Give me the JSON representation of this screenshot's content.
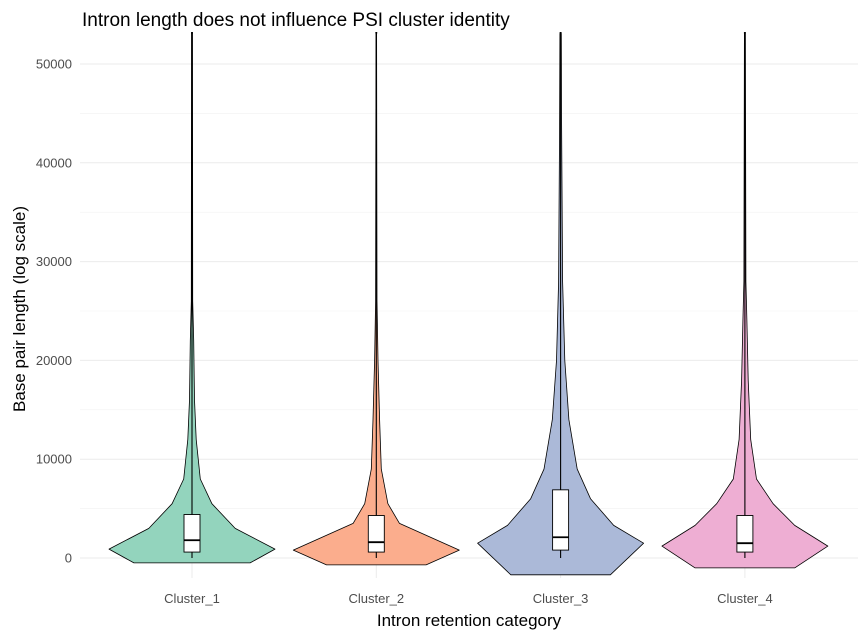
{
  "chart_data": {
    "type": "violin",
    "title": "Intron length does not influence PSI cluster identity",
    "xlabel": "Intron retention category",
    "ylabel": "Base pair length (log scale)",
    "categories": [
      "Cluster_1",
      "Cluster_2",
      "Cluster_3",
      "Cluster_4"
    ],
    "yticks": [
      0,
      10000,
      20000,
      30000,
      40000,
      50000
    ],
    "ytick_labels": [
      "0",
      "10000",
      "20000",
      "30000",
      "40000",
      "50000"
    ],
    "ylim": [
      -1800,
      53000
    ],
    "grid": true,
    "legend": "none",
    "colors": [
      "#93d4bd",
      "#fbad8d",
      "#abb9d8",
      "#eeaed3"
    ],
    "series": [
      {
        "category": "Cluster_1",
        "color": "#93d4bd",
        "boxplot": {
          "lower_whisker": 0,
          "q1": 600,
          "median": 1800,
          "q3": 4400,
          "upper_whisker": 53000
        },
        "density_profile": [
          {
            "y": -500,
            "w": 0.35
          },
          {
            "y": 900,
            "w": 0.5
          },
          {
            "y": 3000,
            "w": 0.26
          },
          {
            "y": 5500,
            "w": 0.12
          },
          {
            "y": 8000,
            "w": 0.05
          },
          {
            "y": 12000,
            "w": 0.025
          },
          {
            "y": 16000,
            "w": 0.015
          },
          {
            "y": 22000,
            "w": 0.01
          },
          {
            "y": 26000,
            "w": 0.004
          },
          {
            "y": 53000,
            "w": 0.003
          }
        ]
      },
      {
        "category": "Cluster_2",
        "color": "#fbad8d",
        "boxplot": {
          "lower_whisker": 0,
          "q1": 600,
          "median": 1600,
          "q3": 4300,
          "upper_whisker": 53000
        },
        "density_profile": [
          {
            "y": -700,
            "w": 0.3
          },
          {
            "y": 800,
            "w": 0.5
          },
          {
            "y": 3500,
            "w": 0.14
          },
          {
            "y": 5500,
            "w": 0.07
          },
          {
            "y": 9000,
            "w": 0.03
          },
          {
            "y": 14000,
            "w": 0.02
          },
          {
            "y": 20000,
            "w": 0.01
          },
          {
            "y": 26000,
            "w": 0.004
          },
          {
            "y": 40000,
            "w": 0.003
          },
          {
            "y": 53000,
            "w": 0.002
          }
        ]
      },
      {
        "category": "Cluster_3",
        "color": "#abb9d8",
        "boxplot": {
          "lower_whisker": 0,
          "q1": 800,
          "median": 2100,
          "q3": 6900,
          "upper_whisker": 53000
        },
        "density_profile": [
          {
            "y": -1700,
            "w": 0.3
          },
          {
            "y": 1500,
            "w": 0.5
          },
          {
            "y": 3300,
            "w": 0.32
          },
          {
            "y": 6000,
            "w": 0.18
          },
          {
            "y": 9000,
            "w": 0.1
          },
          {
            "y": 14000,
            "w": 0.05
          },
          {
            "y": 20000,
            "w": 0.025
          },
          {
            "y": 28000,
            "w": 0.012
          },
          {
            "y": 44000,
            "w": 0.006
          },
          {
            "y": 53000,
            "w": 0.004
          }
        ]
      },
      {
        "category": "Cluster_4",
        "color": "#eeaed3",
        "boxplot": {
          "lower_whisker": 0,
          "q1": 600,
          "median": 1500,
          "q3": 4300,
          "upper_whisker": 53000
        },
        "density_profile": [
          {
            "y": -1000,
            "w": 0.3
          },
          {
            "y": 1200,
            "w": 0.5
          },
          {
            "y": 3300,
            "w": 0.3
          },
          {
            "y": 5500,
            "w": 0.17
          },
          {
            "y": 8000,
            "w": 0.07
          },
          {
            "y": 12000,
            "w": 0.035
          },
          {
            "y": 18000,
            "w": 0.02
          },
          {
            "y": 24000,
            "w": 0.012
          },
          {
            "y": 28000,
            "w": 0.006
          },
          {
            "y": 53000,
            "w": 0.003
          }
        ]
      }
    ]
  }
}
